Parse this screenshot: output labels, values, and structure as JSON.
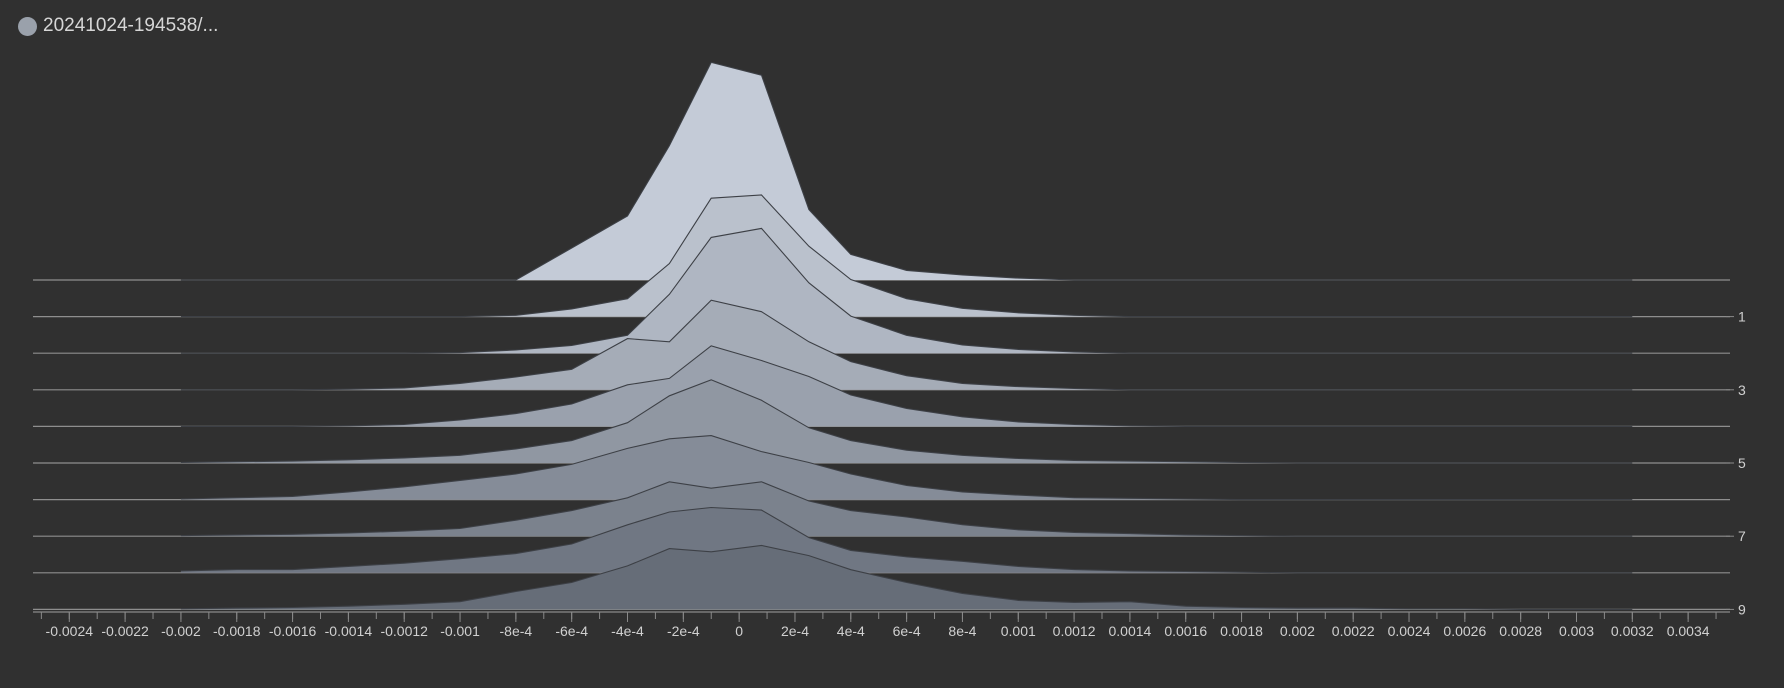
{
  "header": {
    "run_label": "20241024-194538/...",
    "dot_color": "#9aa1ab"
  },
  "colors": {
    "background": "#303030",
    "axis": "#8a8a8a",
    "baseline": "#8e8e8e",
    "ridge_outline": "#3d4046",
    "ridge_fill_back": "#c4cbd7",
    "ridge_fill_front": "#666d78",
    "tick_text": "#d0d0d0"
  },
  "chart_data": {
    "type": "histogram-ridgeline",
    "title": "",
    "xlabel": "",
    "ylabel": "",
    "xlim": [
      -0.00253,
      0.00355
    ],
    "x_ticks": [
      -0.0024,
      -0.0022,
      -0.002,
      -0.0018,
      -0.0016,
      -0.0014,
      -0.0012,
      -0.001,
      -0.0008,
      -0.0006,
      -0.0004,
      -0.0002,
      0,
      0.0002,
      0.0004,
      0.0006,
      0.0008,
      0.001,
      0.0012,
      0.0014,
      0.0016,
      0.0018,
      0.002,
      0.0022,
      0.0024,
      0.0026,
      0.0028,
      0.003,
      0.0032,
      0.0034
    ],
    "x_tick_labels": [
      "-0.0024",
      "-0.0022",
      "-0.002",
      "-0.0018",
      "-0.0016",
      "-0.0014",
      "-0.0012",
      "-0.001",
      "-8e-4",
      "-6e-4",
      "-4e-4",
      "-2e-4",
      "0",
      "2e-4",
      "4e-4",
      "6e-4",
      "8e-4",
      "0.001",
      "0.0012",
      "0.0014",
      "0.0016",
      "0.0018",
      "0.002",
      "0.0022",
      "0.0024",
      "0.0026",
      "0.0028",
      "0.003",
      "0.0032",
      "0.0034"
    ],
    "x_minor_step": 0.0001,
    "step_ticks": [
      1,
      3,
      5,
      7,
      9
    ],
    "step_tick_labels": [
      "1",
      "3",
      "5",
      "7",
      "9"
    ],
    "x": [
      -0.002,
      -0.0018,
      -0.0016,
      -0.0014,
      -0.0012,
      -0.001,
      -0.0008,
      -0.0006,
      -0.0004,
      -0.00025,
      -0.0001,
      8e-05,
      0.00025,
      0.0004,
      0.0006,
      0.0008,
      0.001,
      0.0012,
      0.0014,
      0.0016,
      0.0018,
      0.002,
      0.0022,
      0.0024,
      0.0026,
      0.0028,
      0.003,
      0.0032
    ],
    "series": [
      {
        "step": 0,
        "values": [
          0,
          0,
          0,
          0,
          0,
          0,
          0,
          0.5,
          1,
          2.1,
          3.4,
          3.2,
          1.1,
          0.4,
          0.15,
          0.08,
          0.03,
          0,
          0,
          0,
          0,
          0,
          0,
          0,
          0,
          0,
          0,
          0
        ]
      },
      {
        "step": 1,
        "values": [
          0,
          0,
          0,
          0,
          0,
          0,
          0.02,
          0.12,
          0.28,
          0.83,
          1.85,
          1.9,
          1.1,
          0.58,
          0.28,
          0.13,
          0.06,
          0.02,
          0,
          0,
          0,
          0,
          0,
          0,
          0,
          0,
          0,
          0
        ]
      },
      {
        "step": 2,
        "values": [
          0,
          0,
          0,
          0,
          0,
          0.01,
          0.05,
          0.12,
          0.28,
          0.92,
          1.81,
          1.95,
          1.1,
          0.58,
          0.28,
          0.13,
          0.06,
          0.02,
          0,
          0,
          0,
          0,
          0,
          0,
          0,
          0,
          0,
          0
        ]
      },
      {
        "step": 3,
        "values": [
          0,
          0,
          0,
          0.01,
          0.03,
          0.1,
          0.2,
          0.32,
          0.8,
          0.75,
          1.4,
          1.22,
          0.75,
          0.44,
          0.22,
          0.1,
          0.05,
          0.02,
          0,
          0,
          0,
          0,
          0,
          0,
          0,
          0,
          0,
          0
        ]
      },
      {
        "step": 4,
        "values": [
          0,
          0,
          0,
          0.01,
          0.03,
          0.1,
          0.2,
          0.35,
          0.65,
          0.75,
          1.26,
          1.03,
          0.78,
          0.49,
          0.28,
          0.15,
          0.07,
          0.03,
          0.01,
          0,
          0,
          0,
          0,
          0,
          0,
          0,
          0,
          0
        ]
      },
      {
        "step": 5,
        "values": [
          0.01,
          0.02,
          0.03,
          0.05,
          0.08,
          0.12,
          0.22,
          0.35,
          0.63,
          1.05,
          1.3,
          0.98,
          0.55,
          0.35,
          0.2,
          0.12,
          0.07,
          0.04,
          0.03,
          0.02,
          0.01,
          0,
          0,
          0,
          0,
          0,
          0,
          0
        ]
      },
      {
        "step": 6,
        "values": [
          0.01,
          0.03,
          0.05,
          0.12,
          0.2,
          0.3,
          0.4,
          0.55,
          0.8,
          0.95,
          1.0,
          0.75,
          0.58,
          0.4,
          0.22,
          0.12,
          0.07,
          0.03,
          0.02,
          0.01,
          0,
          0,
          0,
          0,
          0,
          0,
          0,
          0
        ]
      },
      {
        "step": 7,
        "values": [
          0.01,
          0.02,
          0.03,
          0.05,
          0.08,
          0.12,
          0.25,
          0.4,
          0.6,
          0.85,
          0.75,
          0.85,
          0.55,
          0.4,
          0.3,
          0.18,
          0.1,
          0.06,
          0.04,
          0.02,
          0.01,
          0,
          0,
          0,
          0,
          0,
          0,
          0
        ]
      },
      {
        "step": 8,
        "values": [
          0.03,
          0.05,
          0.05,
          0.1,
          0.15,
          0.22,
          0.3,
          0.45,
          0.75,
          0.95,
          1.02,
          0.98,
          0.55,
          0.35,
          0.25,
          0.18,
          0.1,
          0.05,
          0.03,
          0.02,
          0.01,
          0,
          0,
          0,
          0,
          0,
          0,
          0
        ]
      },
      {
        "step": 9,
        "values": [
          0.01,
          0.02,
          0.03,
          0.05,
          0.08,
          0.12,
          0.28,
          0.42,
          0.68,
          0.95,
          0.9,
          1.0,
          0.84,
          0.62,
          0.42,
          0.25,
          0.14,
          0.11,
          0.12,
          0.05,
          0.03,
          0.02,
          0.02,
          0.01,
          0.01,
          0,
          0,
          0
        ]
      }
    ]
  }
}
